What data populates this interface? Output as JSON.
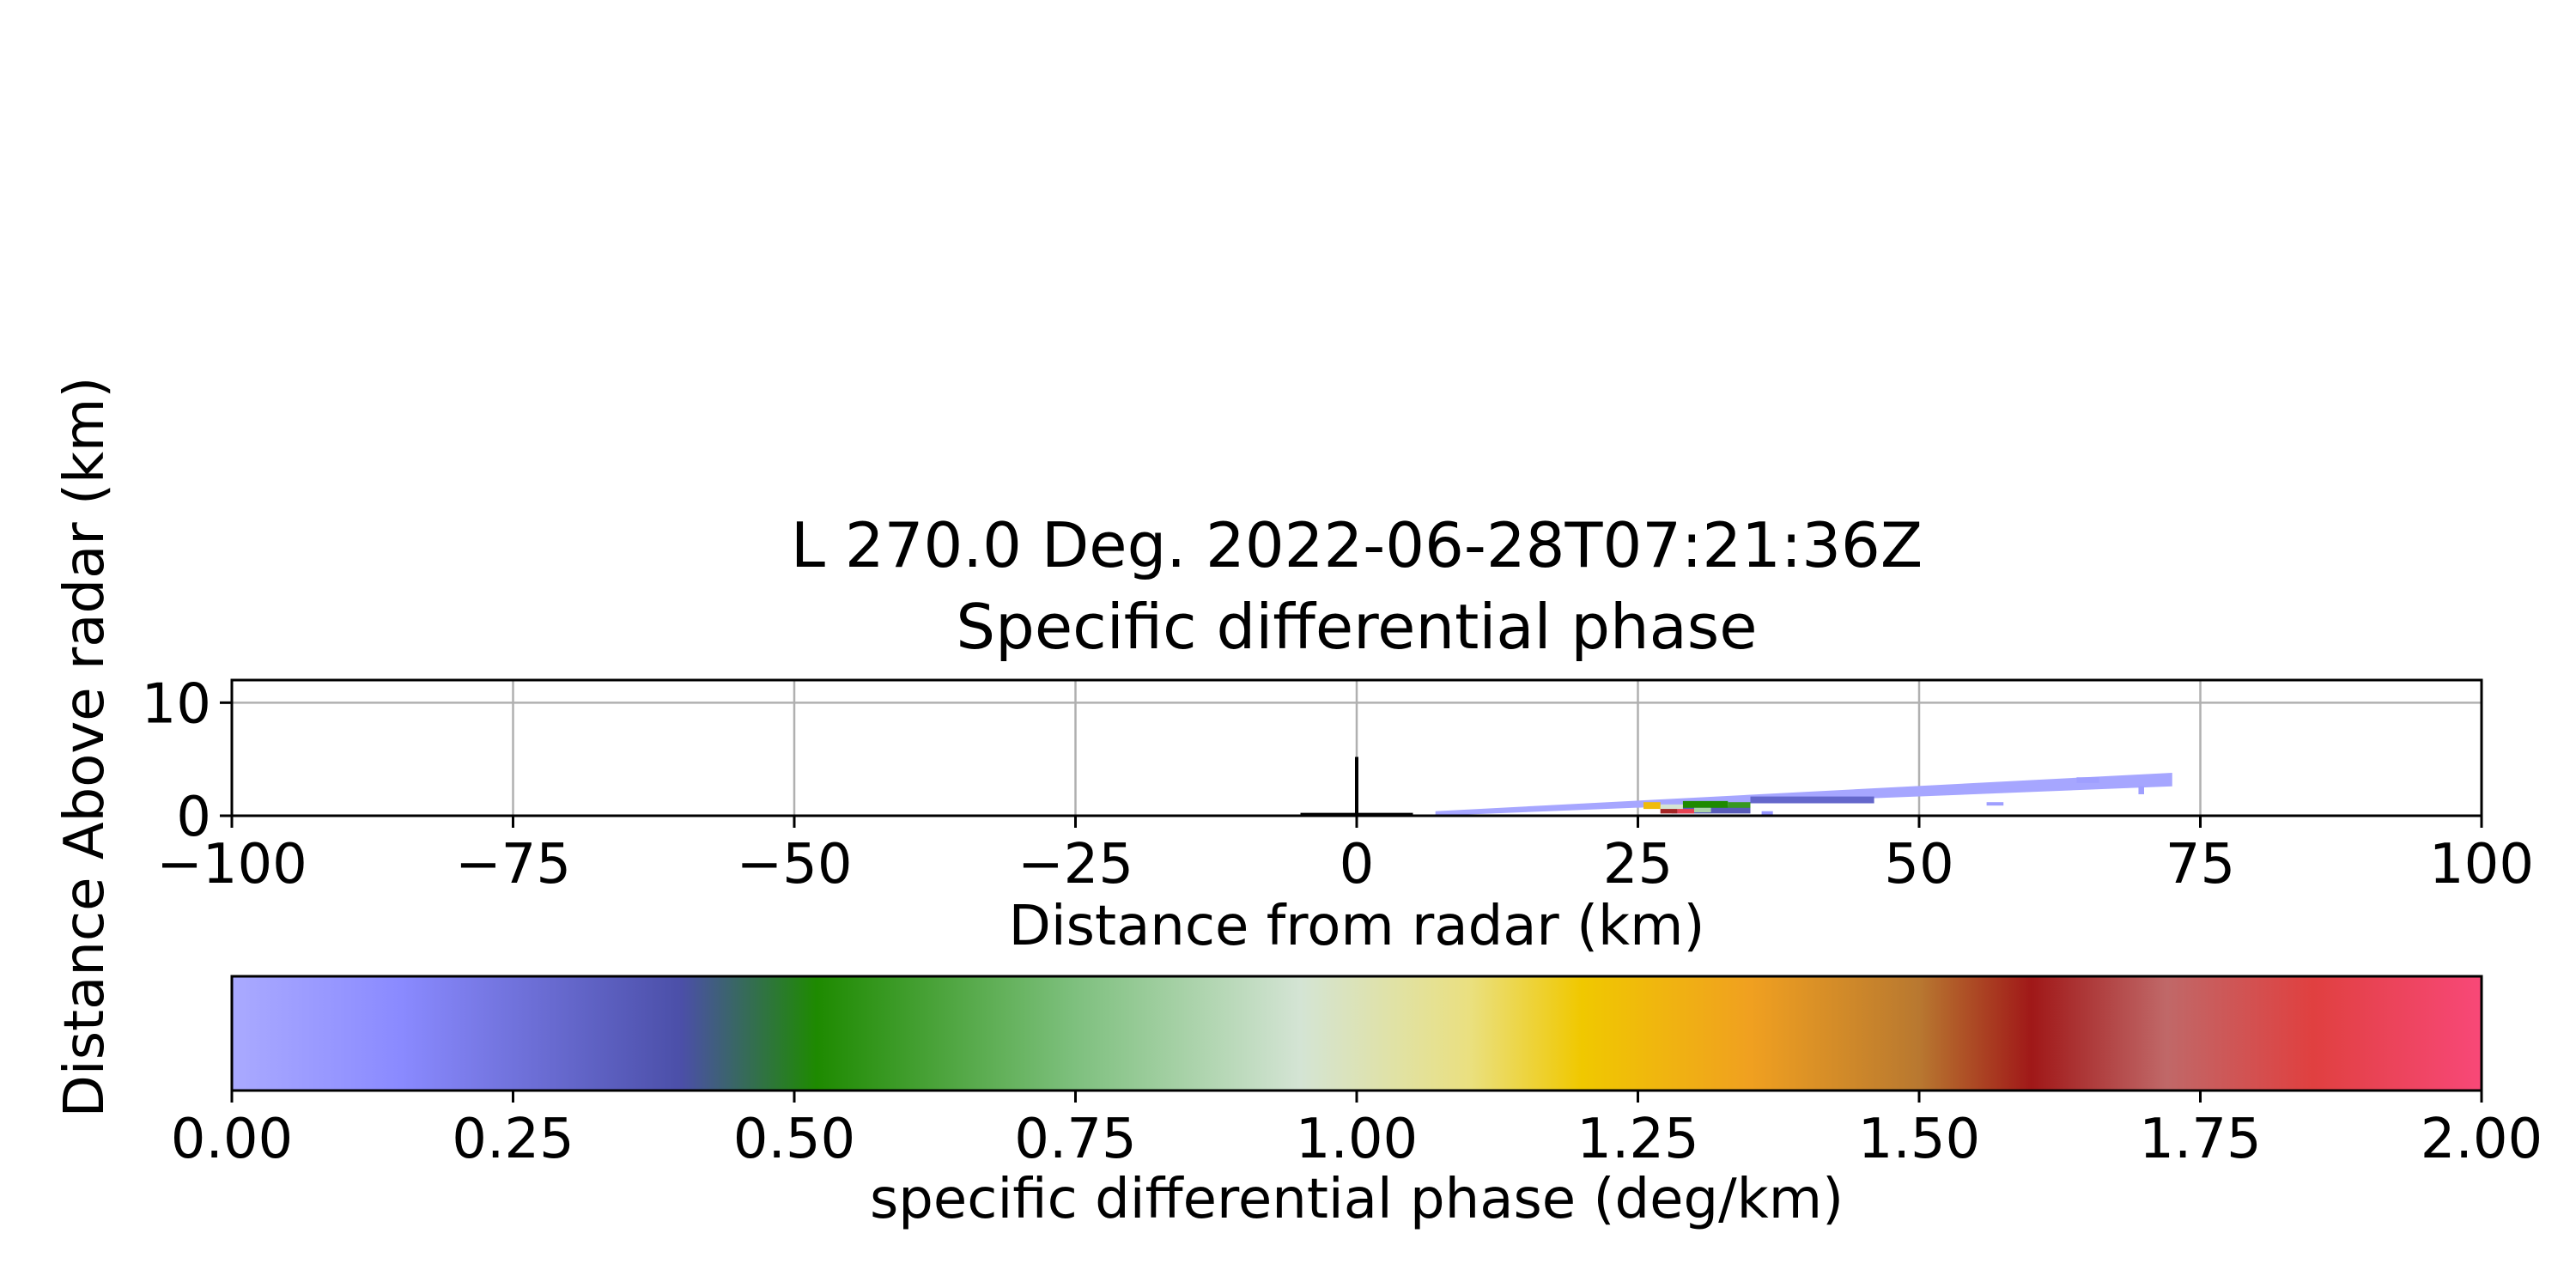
{
  "chart_data": {
    "type": "heatmap",
    "title_line1": "L 270.0 Deg. 2022-06-28T07:21:36Z",
    "title_line2": "Specific differential phase",
    "xlabel": "Distance from radar (km)",
    "ylabel": "Distance Above radar  (km)",
    "xlim": [
      -100,
      100
    ],
    "ylim": [
      0,
      12
    ],
    "x_ticks": [
      -100,
      -75,
      -50,
      -25,
      0,
      25,
      50,
      75,
      100
    ],
    "x_tick_labels": [
      "−100",
      "−75",
      "−50",
      "−25",
      "0",
      "25",
      "50",
      "75",
      "100"
    ],
    "y_ticks": [
      0,
      10
    ],
    "y_tick_labels": [
      "0",
      "10"
    ],
    "grid": true,
    "radar_marker": {
      "vertical": {
        "x": 0,
        "y0": 0,
        "y1": 5.2
      },
      "horizontal": {
        "x0": -5,
        "x1": 5,
        "y": 0.1
      }
    },
    "beam": {
      "start_x": 7,
      "end_x": 72.5,
      "top_at_start": 0.4,
      "top_at_end": 3.8,
      "thickness": 1.2,
      "background_value": 0.02
    },
    "features": [
      {
        "x0": 28,
        "x1": 35,
        "y0": 0.2,
        "y1": 0.9,
        "value": 0.35
      },
      {
        "x0": 35,
        "x1": 46,
        "y0": 1.1,
        "y1": 1.7,
        "value": 0.3
      },
      {
        "x0": 29,
        "x1": 33,
        "y0": 0.7,
        "y1": 1.3,
        "value": 0.52
      },
      {
        "x0": 33,
        "x1": 35,
        "y0": 0.7,
        "y1": 1.2,
        "value": 0.58
      },
      {
        "x0": 27,
        "x1": 29,
        "y0": 0.5,
        "y1": 1.0,
        "value": 0.95
      },
      {
        "x0": 25.5,
        "x1": 27,
        "y0": 0.6,
        "y1": 1.2,
        "value": 1.25
      },
      {
        "x0": 27,
        "x1": 28.5,
        "y0": 0.2,
        "y1": 0.6,
        "value": 1.62
      },
      {
        "x0": 28.5,
        "x1": 30,
        "y0": 0.2,
        "y1": 0.6,
        "value": 1.9
      },
      {
        "x0": 30,
        "x1": 31.5,
        "y0": 0.3,
        "y1": 0.7,
        "value": 0.85
      },
      {
        "x0": 36,
        "x1": 37,
        "y0": 0.0,
        "y1": 0.4,
        "value": 0.1
      },
      {
        "x0": 56,
        "x1": 57.5,
        "y0": 0.9,
        "y1": 1.2,
        "value": 0.05
      },
      {
        "x0": 64,
        "x1": 66,
        "y0": 2.9,
        "y1": 3.4,
        "value": 0.05
      },
      {
        "x0": 69.5,
        "x1": 70,
        "y0": 1.9,
        "y1": 2.6,
        "value": 0.05
      }
    ],
    "colorbar": {
      "label": "specific differential phase (deg/km)",
      "vmin": 0,
      "vmax": 2,
      "ticks": [
        0,
        0.25,
        0.5,
        0.75,
        1.0,
        1.25,
        1.5,
        1.75,
        2.0
      ],
      "tick_labels": [
        "0.00",
        "0.25",
        "0.50",
        "0.75",
        "1.00",
        "1.25",
        "1.50",
        "1.75",
        "2.00"
      ],
      "stops": [
        {
          "v": 0.0,
          "color": "#aaaaff"
        },
        {
          "v": 0.15,
          "color": "#8a8aff"
        },
        {
          "v": 0.4,
          "color": "#4b4fa8"
        },
        {
          "v": 0.52,
          "color": "#1e8a00"
        },
        {
          "v": 0.75,
          "color": "#7ec07e"
        },
        {
          "v": 0.95,
          "color": "#d4e4d4"
        },
        {
          "v": 1.1,
          "color": "#eae080"
        },
        {
          "v": 1.2,
          "color": "#f0c800"
        },
        {
          "v": 1.35,
          "color": "#f0a020"
        },
        {
          "v": 1.5,
          "color": "#b87830"
        },
        {
          "v": 1.6,
          "color": "#a01818"
        },
        {
          "v": 1.72,
          "color": "#c06868"
        },
        {
          "v": 1.85,
          "color": "#e04040"
        },
        {
          "v": 2.0,
          "color": "#f84878"
        }
      ]
    },
    "colors": {
      "grid": "#b0b0b0",
      "axes": "#000000",
      "marker": "#000000"
    }
  }
}
